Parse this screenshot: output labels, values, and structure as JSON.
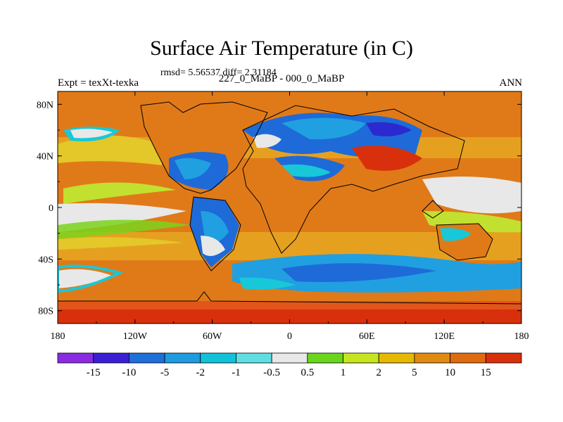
{
  "title": "Surface Air Temperature (in C)",
  "stats": "rmsd= 5.56537 diff= 2.31184",
  "experiment": "Expt = texXt-texka",
  "subtitle": "227_0_MaBP - 000_0_MaBP",
  "season": "ANN",
  "map": {
    "lon_labels": [
      "180",
      "120W",
      "60W",
      "0",
      "60E",
      "120E",
      "180"
    ],
    "lat_labels": [
      "80N",
      "40N",
      "0",
      "40S",
      "80S"
    ],
    "lat_values": [
      80,
      40,
      0,
      -40,
      -80
    ],
    "lon_values": [
      -180,
      -120,
      -60,
      0,
      60,
      120,
      180
    ]
  },
  "colorbar": {
    "labels": [
      "-15",
      "-10",
      "-5",
      "-2",
      "-1",
      "-0.5",
      "0.5",
      "1",
      "2",
      "5",
      "10",
      "15"
    ],
    "colors": [
      "#8a2be2",
      "#3b1fd6",
      "#1e6fd9",
      "#1f9be0",
      "#11c3d8",
      "#5fdfe3",
      "#e8e8e8",
      "#6ad61b",
      "#c7e51f",
      "#e6b800",
      "#e08a10",
      "#e06a10",
      "#d8300c"
    ]
  },
  "palette": {
    "deep_red": "#d8300c",
    "red_orange": "#e2551a",
    "orange": "#e07a18",
    "light_orange": "#e6a020",
    "yellow": "#e4c728",
    "yellow_green": "#c2e030",
    "green": "#7ad41c",
    "white": "#e8e8e8",
    "cyan": "#18c8d8",
    "light_blue": "#20a0e0",
    "blue": "#1e6ad8",
    "dark_blue": "#2a2ad0"
  }
}
